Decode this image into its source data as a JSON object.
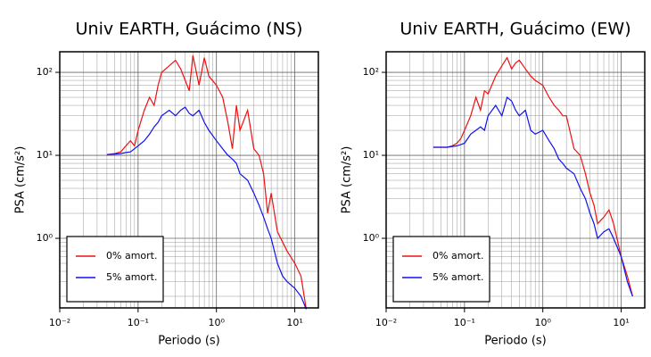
{
  "chart_data": [
    {
      "type": "line",
      "title": "Univ EARTH, Guácimo (NS)",
      "x_label": "Periodo (s)",
      "y_label": "PSA (cm/s²)",
      "xscale": "log",
      "yscale": "log",
      "grid": true,
      "legend": "lower left",
      "xlim": [
        0.01,
        20
      ],
      "ylim": [
        0.145,
        177
      ],
      "xticks": [
        {
          "value": 0.01,
          "label": "10⁻²"
        },
        {
          "value": 0.1,
          "label": "10⁻¹"
        },
        {
          "value": 1,
          "label": "10⁰"
        },
        {
          "value": 10,
          "label": "10¹"
        }
      ],
      "yticks": [
        {
          "value": 1,
          "label": "10⁰"
        },
        {
          "value": 10,
          "label": "10¹"
        },
        {
          "value": 100,
          "label": "10²"
        }
      ],
      "x": [
        0.04,
        0.05,
        0.06,
        0.07,
        0.08,
        0.09,
        0.1,
        0.12,
        0.14,
        0.16,
        0.18,
        0.2,
        0.25,
        0.3,
        0.35,
        0.4,
        0.45,
        0.5,
        0.6,
        0.7,
        0.8,
        1,
        1.2,
        1.4,
        1.6,
        1.8,
        2,
        2.5,
        3,
        3.5,
        4,
        4.5,
        5,
        6,
        7,
        8,
        10,
        12,
        14
      ],
      "series": [
        {
          "name": "0% amort.",
          "color": "#ee1111",
          "values": [
            10.2,
            10.5,
            11,
            13,
            15,
            13,
            20,
            35,
            50,
            40,
            70,
            100,
            120,
            140,
            110,
            80,
            60,
            160,
            70,
            150,
            90,
            70,
            50,
            25,
            12,
            40,
            20,
            35,
            12,
            10,
            6,
            2,
            3.5,
            1.2,
            0.9,
            0.7,
            0.5,
            0.35,
            0.14
          ]
        },
        {
          "name": "5% amort.",
          "color": "#1111ee",
          "values": [
            10.2,
            10.3,
            10.5,
            10.8,
            11,
            12,
            13,
            15,
            18,
            22,
            25,
            30,
            35,
            30,
            35,
            38,
            32,
            30,
            35,
            25,
            20,
            15,
            12,
            10,
            9,
            8,
            6,
            5,
            3.5,
            2.5,
            1.8,
            1.3,
            1.0,
            0.5,
            0.35,
            0.3,
            0.25,
            0.2,
            0.14
          ]
        }
      ]
    },
    {
      "type": "line",
      "title": "Univ EARTH, Guácimo (EW)",
      "x_label": "Periodo (s)",
      "y_label": "PSA (cm/s²)",
      "xscale": "log",
      "yscale": "log",
      "grid": true,
      "legend": "lower left",
      "xlim": [
        0.01,
        20
      ],
      "ylim": [
        0.145,
        177
      ],
      "xticks": [
        {
          "value": 0.01,
          "label": "10⁻²"
        },
        {
          "value": 0.1,
          "label": "10⁻¹"
        },
        {
          "value": 1,
          "label": "10⁰"
        },
        {
          "value": 10,
          "label": "10¹"
        }
      ],
      "yticks": [
        {
          "value": 1,
          "label": "10⁰"
        },
        {
          "value": 10,
          "label": "10¹"
        },
        {
          "value": 100,
          "label": "10²"
        }
      ],
      "x": [
        0.04,
        0.05,
        0.06,
        0.07,
        0.08,
        0.09,
        0.1,
        0.12,
        0.14,
        0.16,
        0.18,
        0.2,
        0.25,
        0.3,
        0.35,
        0.4,
        0.45,
        0.5,
        0.6,
        0.7,
        0.8,
        1,
        1.2,
        1.4,
        1.6,
        1.8,
        2,
        2.5,
        3,
        3.5,
        4,
        4.5,
        5,
        6,
        7,
        8,
        10,
        12,
        14
      ],
      "series": [
        {
          "name": "0% amort.",
          "color": "#ee1111",
          "values": [
            12.5,
            12.5,
            12.5,
            13,
            14,
            16,
            20,
            30,
            50,
            35,
            60,
            55,
            90,
            120,
            150,
            110,
            130,
            140,
            110,
            90,
            80,
            70,
            50,
            40,
            35,
            30,
            30,
            12,
            10,
            6,
            3.5,
            2.5,
            1.5,
            1.8,
            2.2,
            1.5,
            0.6,
            0.35,
            0.2
          ]
        },
        {
          "name": "5% amort.",
          "color": "#1111ee",
          "values": [
            12.5,
            12.5,
            12.5,
            12.8,
            13,
            13.5,
            14,
            18,
            20,
            22,
            20,
            30,
            40,
            30,
            50,
            45,
            35,
            30,
            35,
            20,
            18,
            20,
            15,
            12,
            9,
            8,
            7,
            6,
            4,
            3,
            2,
            1.5,
            1.0,
            1.2,
            1.3,
            1.0,
            0.6,
            0.3,
            0.2
          ]
        }
      ]
    }
  ]
}
